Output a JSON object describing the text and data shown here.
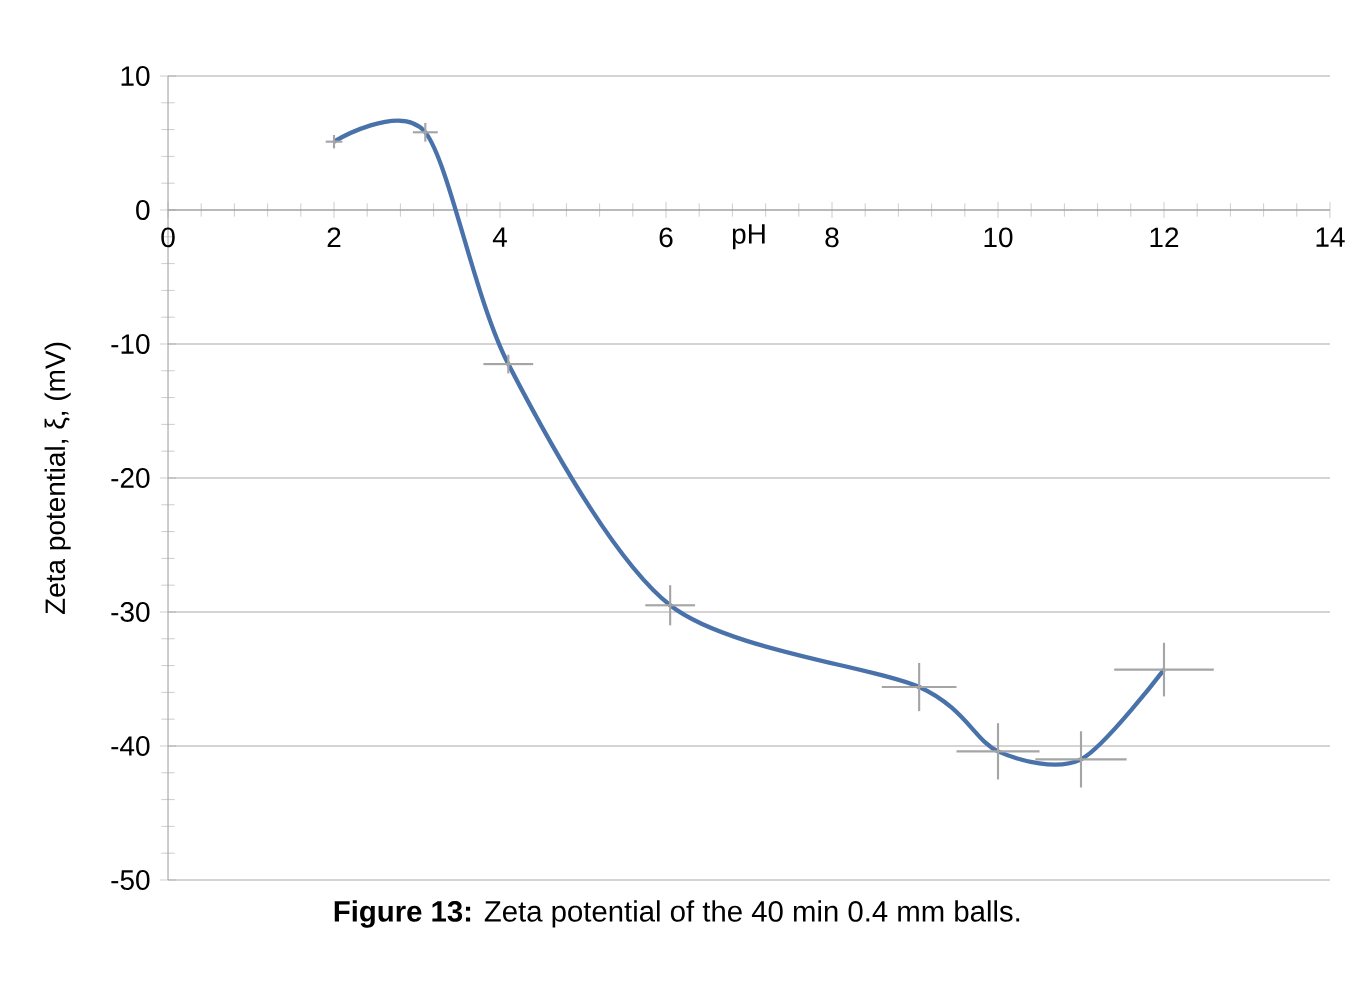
{
  "chart_data": {
    "type": "line",
    "xlabel": "pH",
    "ylabel": "Zeta potential, ξ, (mV)",
    "annotations": [
      "**Figure 13:** Zeta potential of the 40 min 0.4 mm balls."
    ],
    "x": [
      2.0,
      3.1,
      4.1,
      6.05,
      9.05,
      10.0,
      11.0,
      12.0
    ],
    "series": [
      {
        "color": "#4a72aa",
        "values": [
          5.1,
          5.8,
          -11.5,
          -29.5,
          -35.6,
          -40.4,
          -41.0,
          -34.3
        ],
        "errors": [
          0.5,
          0.7,
          0.7,
          1.5,
          1.8,
          2.1,
          2.1,
          2.0
        ],
        "xerrors": [
          0.1,
          0.15,
          0.3,
          0.3,
          0.45,
          0.5,
          0.55,
          0.6
        ]
      }
    ],
    "xlim": [
      0,
      14
    ],
    "ylim": [
      -50,
      10
    ],
    "xticks": [
      0,
      2,
      4,
      6,
      8,
      10,
      12,
      14
    ],
    "yticks": [
      -50,
      -40,
      -30,
      -20,
      -10,
      0,
      10
    ],
    "grid": "y",
    "marker": "none",
    "line_style": "solid"
  }
}
